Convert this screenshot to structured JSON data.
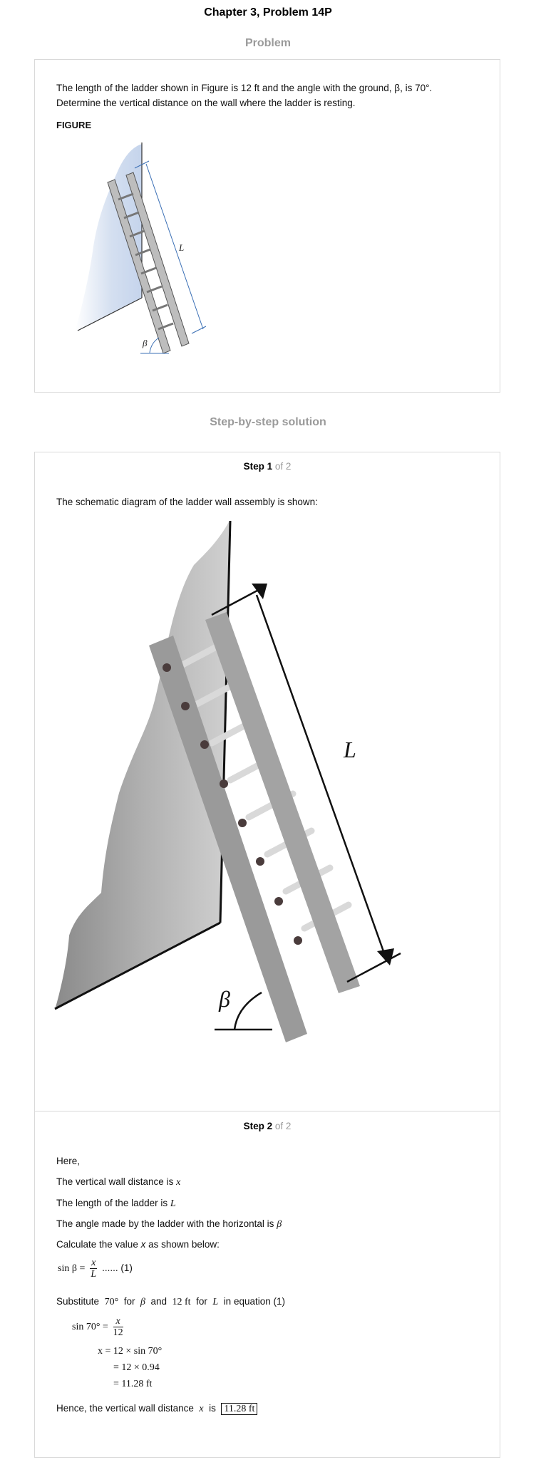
{
  "header": {
    "title": "Chapter 3, Problem 14P"
  },
  "problem": {
    "section_label": "Problem",
    "text_line1": "The length of the ladder shown in Figure is 12 ft and the angle with the ground, β, is 70°.",
    "text_line2": "Determine the vertical distance on the wall where the ladder is resting.",
    "figure_label": "FIGURE",
    "figure_labels": {
      "length": "L",
      "angle": "β"
    }
  },
  "solution": {
    "section_label": "Step-by-step solution",
    "step1": {
      "step_word": "Step 1",
      "of_total": "of 2",
      "intro": "The schematic diagram of the ladder wall assembly is shown:",
      "diagram_labels": {
        "length": "L",
        "angle": "β"
      }
    },
    "step2": {
      "step_word": "Step 2",
      "of_total": "of 2",
      "here": "Here,",
      "vertical_text": "The vertical wall distance is",
      "vertical_sym": "x",
      "length_text": "The length of the ladder is",
      "length_sym": "L",
      "angle_text": "The angle made by the ladder with the horizontal is",
      "angle_sym": "β",
      "calc_prefix": "Calculate the value",
      "calc_sym": "x",
      "calc_suffix": "as shown below:",
      "eq1_lhs": "sin β =",
      "eq1_num": "x",
      "eq1_den": "L",
      "eq1_tag": "...... (1)",
      "subst_word": "Substitute",
      "subst_angle": "70°",
      "for1": "for",
      "subst_beta": "β",
      "and_word": "and",
      "subst_len": "12 ft",
      "for2": "for",
      "subst_L": "L",
      "in_eq": "in equation (1)",
      "line1_lhs": "sin 70° =",
      "line1_num": "x",
      "line1_den": "12",
      "line2": "x = 12 × sin 70°",
      "line3": "= 12 × 0.94",
      "line4": "= 11.28 ft",
      "hence_text": "Hence, the vertical wall distance",
      "hence_sym": "x",
      "is_word": "is",
      "answer": "11.28 ft"
    }
  }
}
